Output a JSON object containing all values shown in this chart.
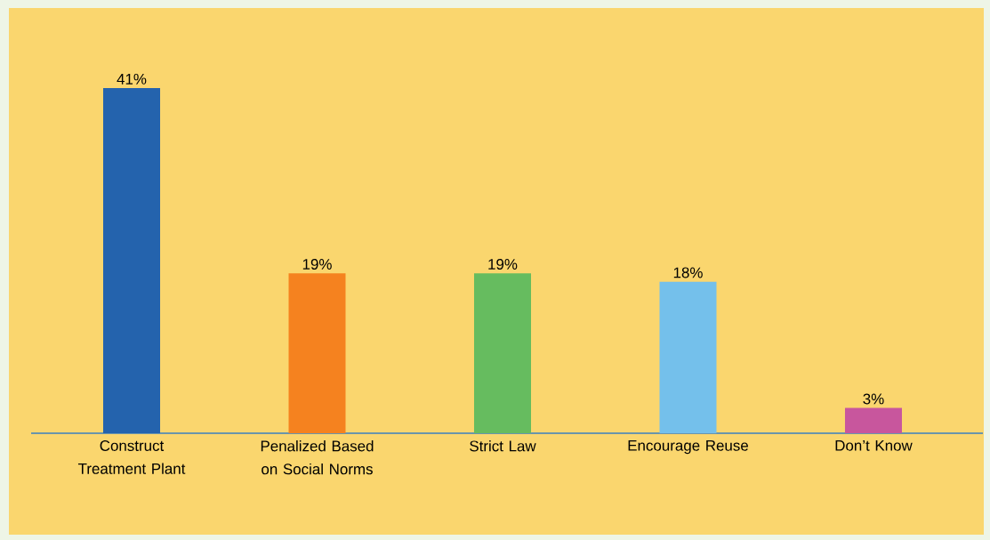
{
  "chart_data": {
    "type": "bar",
    "categories": [
      "Construct Treatment Plant",
      "Penalized Based on Social Norms",
      "Strict Law",
      "Encourage Reuse",
      "Don’t Know"
    ],
    "values": [
      41,
      19,
      19,
      18,
      3
    ],
    "colors": [
      "#2463ad",
      "#f5821f",
      "#66bc5f",
      "#74c0eb",
      "#c8569d"
    ],
    "value_labels": [
      "41%",
      "19%",
      "19%",
      "18%",
      "3%"
    ],
    "legend": false
  }
}
